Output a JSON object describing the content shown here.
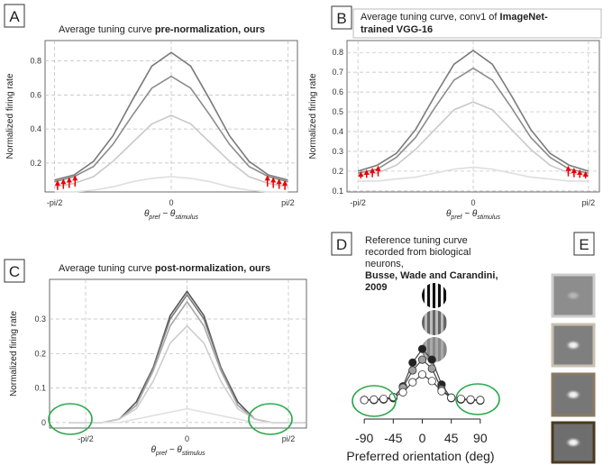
{
  "chart_data": [
    {
      "type": "line",
      "label": "A",
      "title": [
        "Average tuning curve ",
        "pre-normalization, ours"
      ],
      "xlabel": [
        "θ",
        "pref",
        " − θ",
        "stimulus"
      ],
      "ylabel": "Normalized firing rate",
      "x": [
        -1.5708,
        -1.309,
        -1.0472,
        -0.7854,
        -0.5236,
        -0.2618,
        0,
        0.2618,
        0.5236,
        0.7854,
        1.0472,
        1.309,
        1.5708
      ],
      "series": [
        {
          "color": "#7a7a7a",
          "values": [
            0.1,
            0.13,
            0.21,
            0.36,
            0.57,
            0.77,
            0.85,
            0.77,
            0.57,
            0.36,
            0.21,
            0.13,
            0.1
          ]
        },
        {
          "color": "#8c8c8c",
          "values": [
            0.09,
            0.12,
            0.18,
            0.31,
            0.48,
            0.64,
            0.71,
            0.64,
            0.48,
            0.31,
            0.18,
            0.12,
            0.09
          ]
        },
        {
          "color": "#c9c9c9",
          "values": [
            0.06,
            0.08,
            0.12,
            0.21,
            0.32,
            0.43,
            0.48,
            0.43,
            0.32,
            0.21,
            0.12,
            0.08,
            0.06
          ]
        },
        {
          "color": "#dedede",
          "values": [
            0.03,
            0.03,
            0.04,
            0.06,
            0.09,
            0.11,
            0.12,
            0.11,
            0.09,
            0.06,
            0.04,
            0.03,
            0.03
          ]
        }
      ],
      "xlim": [
        -1.7,
        1.7
      ],
      "ylim": [
        0.03,
        0.92
      ],
      "xticks": [
        {
          "value": -1.5708,
          "label": "-pi/2"
        },
        0,
        {
          "value": 1.5708,
          "label": "pi/2"
        }
      ],
      "yticks": [
        0.2,
        0.4,
        0.6,
        0.8
      ],
      "grid": true
    },
    {
      "type": "line",
      "label": "B",
      "title": [
        "Average tuning curve, conv1 of ",
        "ImageNet-",
        "trained VGG-16"
      ],
      "xlabel": [
        "θ",
        "pref",
        " − θ",
        "stimulus"
      ],
      "ylabel": "Normalized firing rate",
      "x": [
        -1.5708,
        -1.309,
        -1.0472,
        -0.7854,
        -0.5236,
        -0.2618,
        0,
        0.2618,
        0.5236,
        0.7854,
        1.0472,
        1.309,
        1.5708
      ],
      "series": [
        {
          "color": "#7a7a7a",
          "values": [
            0.2,
            0.23,
            0.29,
            0.41,
            0.58,
            0.74,
            0.81,
            0.74,
            0.58,
            0.41,
            0.29,
            0.23,
            0.2
          ]
        },
        {
          "color": "#8c8c8c",
          "values": [
            0.19,
            0.21,
            0.27,
            0.37,
            0.52,
            0.66,
            0.72,
            0.66,
            0.52,
            0.37,
            0.27,
            0.21,
            0.19
          ]
        },
        {
          "color": "#c9c9c9",
          "values": [
            0.18,
            0.19,
            0.23,
            0.31,
            0.41,
            0.51,
            0.55,
            0.51,
            0.41,
            0.31,
            0.23,
            0.19,
            0.18
          ]
        },
        {
          "color": "#dedede",
          "values": [
            0.15,
            0.15,
            0.16,
            0.17,
            0.19,
            0.21,
            0.22,
            0.21,
            0.19,
            0.17,
            0.16,
            0.15,
            0.15
          ]
        }
      ],
      "xlim": [
        -1.72,
        1.72
      ],
      "ylim": [
        0.095,
        0.86
      ],
      "xticks": [
        {
          "value": -1.5708,
          "label": "-pi/2"
        },
        0,
        {
          "value": 1.5708,
          "label": "pi/2"
        }
      ],
      "yticks": [
        0.1,
        0.2,
        0.3,
        0.4,
        0.5,
        0.6,
        0.7,
        0.8
      ],
      "grid": true
    },
    {
      "type": "line",
      "label": "C",
      "title": [
        "Average tuning curve ",
        "post-normalization, ours"
      ],
      "xlabel": [
        "θ",
        "pref",
        " − θ",
        "stimulus"
      ],
      "ylabel": "Normalized firing rate",
      "x": [
        -1.8326,
        -1.5708,
        -1.309,
        -1.0472,
        -0.7854,
        -0.5236,
        -0.2618,
        0,
        0.2618,
        0.5236,
        0.7854,
        1.0472,
        1.309,
        1.5708,
        1.8326
      ],
      "series": [
        {
          "color": "#555555",
          "values": [
            0,
            0,
            0,
            0.01,
            0.06,
            0.16,
            0.31,
            0.38,
            0.31,
            0.16,
            0.06,
            0.01,
            0,
            0,
            0
          ]
        },
        {
          "color": "#7a7a7a",
          "values": [
            0,
            0,
            0,
            0.01,
            0.05,
            0.16,
            0.3,
            0.37,
            0.3,
            0.16,
            0.05,
            0.01,
            0,
            0,
            0
          ]
        },
        {
          "color": "#a8a8a8",
          "values": [
            0,
            0,
            0,
            0.01,
            0.05,
            0.15,
            0.28,
            0.35,
            0.28,
            0.15,
            0.05,
            0.01,
            0,
            0,
            0
          ]
        },
        {
          "color": "#cdcdcd",
          "values": [
            0,
            0,
            0,
            0.01,
            0.04,
            0.12,
            0.23,
            0.28,
            0.23,
            0.12,
            0.04,
            0.01,
            0,
            0,
            0
          ]
        },
        {
          "color": "#e0e0e0",
          "values": [
            0,
            0,
            0,
            0,
            0.01,
            0.02,
            0.03,
            0.04,
            0.03,
            0.02,
            0.01,
            0,
            0,
            0,
            0
          ]
        }
      ],
      "xlim": [
        -2.13,
        1.85
      ],
      "ylim": [
        -0.016,
        0.415
      ],
      "xticks": [
        {
          "value": -1.5708,
          "label": "-pi/2"
        },
        0,
        {
          "value": 1.5708,
          "label": "pi/2"
        }
      ],
      "yticks": [
        0.0,
        0.1,
        0.2,
        0.3
      ],
      "grid": true
    },
    {
      "type": "scatter-line",
      "label": "D",
      "annotation": [
        "Reference tuning curve",
        "recorded from biological",
        "neurons,",
        "Busse, Wade and Carandini,",
        "2009"
      ],
      "xlabel": "Preferred orientation (deg)",
      "x": [
        -90,
        -75,
        -60,
        -45,
        -30,
        -15,
        0,
        15,
        30,
        45,
        60,
        75,
        90
      ],
      "series": [
        {
          "color": "#444444",
          "marker_color": "#222222",
          "values": [
            0.12,
            0.12,
            0.13,
            0.15,
            0.35,
            0.75,
            0.98,
            0.8,
            0.38,
            0.15,
            0.13,
            0.12,
            0.12
          ]
        },
        {
          "color": "#444444",
          "marker_color": "#a0a0a0",
          "values": [
            0.12,
            0.12,
            0.13,
            0.17,
            0.33,
            0.62,
            0.8,
            0.65,
            0.3,
            0.16,
            0.13,
            0.12,
            0.11
          ]
        },
        {
          "color": "#444444",
          "marker_color": "#ffffff",
          "values": [
            0.12,
            0.13,
            0.14,
            0.17,
            0.25,
            0.42,
            0.55,
            0.44,
            0.27,
            0.16,
            0.14,
            0.13,
            0.12
          ]
        }
      ],
      "xlim": [
        -100,
        100
      ],
      "ylim": [
        -0.2,
        2.0
      ],
      "xticks": [
        -90,
        -45,
        0,
        45,
        90
      ]
    },
    {
      "type": "image-grid",
      "label": "E"
    }
  ]
}
